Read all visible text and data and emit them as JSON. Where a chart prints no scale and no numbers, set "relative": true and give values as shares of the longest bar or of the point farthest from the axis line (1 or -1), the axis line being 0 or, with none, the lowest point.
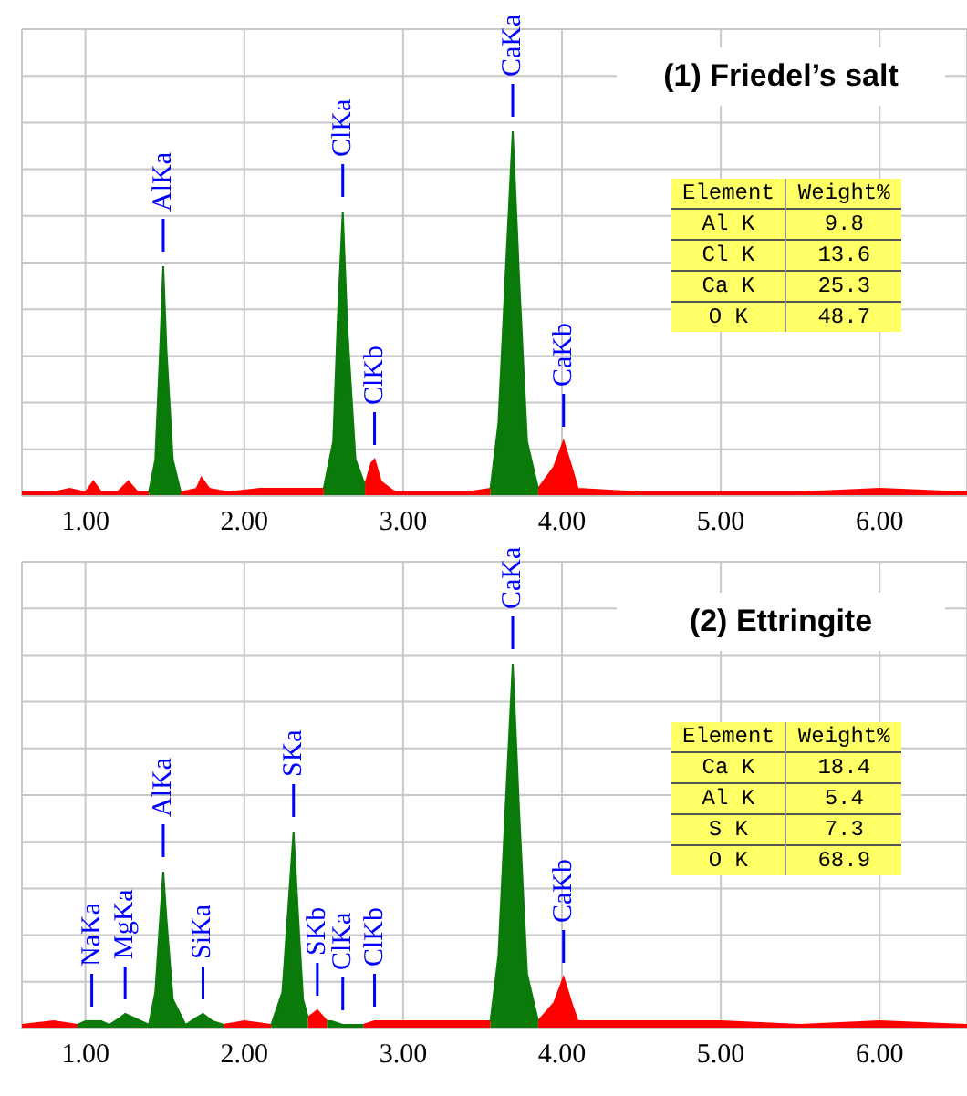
{
  "chart_data": [
    {
      "type": "area",
      "relative": true,
      "title": "(1) Friedel’s salt",
      "grid": true,
      "xlim": [
        0.6,
        6.55
      ],
      "xticks": [
        {
          "value": 1,
          "label": "1.00"
        },
        {
          "value": 2,
          "label": "2.00"
        },
        {
          "value": 3,
          "label": "3.00"
        },
        {
          "value": 4,
          "label": "4.00"
        },
        {
          "value": 5,
          "label": "5.00"
        },
        {
          "value": 6,
          "label": "6.00"
        }
      ],
      "series": [
        {
          "color": "#ff0000",
          "x": [
            0.6,
            0.8,
            0.9,
            1.0,
            1.05,
            1.1,
            1.2,
            1.27,
            1.33,
            1.4,
            1.5,
            1.6,
            1.7,
            1.73,
            1.78,
            1.9,
            2.1,
            2.3,
            2.5,
            2.6,
            2.76,
            2.8,
            2.82,
            2.86,
            2.95,
            3.2,
            3.4,
            3.55,
            3.7,
            3.85,
            3.95,
            4.01,
            4.06,
            4.1,
            4.5,
            5.0,
            5.5,
            6.0,
            6.55
          ],
          "values": [
            0.01,
            0.01,
            0.02,
            0.01,
            0.04,
            0.01,
            0.01,
            0.04,
            0.01,
            0.01,
            null,
            0.01,
            0.02,
            0.05,
            0.02,
            0.01,
            0.02,
            0.02,
            0.02,
            null,
            0.03,
            0.09,
            0.1,
            0.04,
            0.01,
            0.01,
            0.01,
            0.02,
            null,
            0.02,
            0.08,
            0.15,
            0.08,
            0.02,
            0.01,
            0.01,
            0.01,
            0.02,
            0.01
          ]
        },
        {
          "color": "#0a7a0a",
          "x": [
            1.4,
            1.44,
            1.47,
            1.49,
            1.51,
            1.55,
            1.6,
            2.0,
            2.5,
            2.56,
            2.59,
            2.62,
            2.65,
            2.7,
            2.76,
            3.2,
            3.55,
            3.6,
            3.65,
            3.69,
            3.73,
            3.78,
            3.85
          ],
          "values": [
            0.01,
            0.1,
            0.4,
            0.63,
            0.4,
            0.1,
            0.01,
            null,
            0.02,
            0.15,
            0.5,
            0.78,
            0.45,
            0.1,
            0.03,
            null,
            0.02,
            0.2,
            0.65,
            1,
            0.6,
            0.15,
            0.02
          ]
        }
      ],
      "annotations": [
        {
          "text": "AlKa",
          "x": 1.49,
          "y": 0.63
        },
        {
          "text": "ClKa",
          "x": 2.62,
          "y": 0.78
        },
        {
          "text": "ClKb",
          "x": 2.82,
          "y": 0.1
        },
        {
          "text": "CaKa",
          "x": 3.69,
          "y": 1
        },
        {
          "text": "CaKb",
          "x": 4.01,
          "y": 0.15
        },
        "Element",
        "Weight%",
        "Al K",
        "9.8",
        "Cl K",
        "13.6",
        "Ca K",
        "25.3",
        "O K",
        "48.7"
      ]
    },
    {
      "type": "area",
      "relative": true,
      "title": "(2) Ettringite",
      "grid": true,
      "xlim": [
        0.6,
        6.55
      ],
      "xticks": [
        {
          "value": 1,
          "label": "1.00"
        },
        {
          "value": 2,
          "label": "2.00"
        },
        {
          "value": 3,
          "label": "3.00"
        },
        {
          "value": 4,
          "label": "4.00"
        },
        {
          "value": 5,
          "label": "5.00"
        },
        {
          "value": 6,
          "label": "6.00"
        }
      ],
      "series": [
        {
          "color": "#ff0000",
          "x": [
            0.6,
            0.8,
            0.95,
            1.4,
            1.87,
            2.0,
            2.17,
            2.3,
            2.4,
            2.46,
            2.52,
            2.6,
            2.75,
            2.82,
            3.0,
            3.3,
            3.55,
            3.7,
            3.85,
            3.95,
            4.01,
            4.06,
            4.1,
            4.5,
            5.0,
            5.5,
            6.0,
            6.55
          ],
          "values": [
            0.01,
            0.02,
            0.01,
            null,
            0.01,
            0.02,
            0.01,
            null,
            0.03,
            0.05,
            0.02,
            null,
            0.01,
            0.02,
            0.02,
            0.02,
            0.02,
            null,
            0.02,
            0.07,
            0.14,
            0.07,
            0.02,
            0.02,
            0.02,
            0.01,
            0.02,
            0.01
          ]
        },
        {
          "color": "#0a7a0a",
          "x": [
            0.95,
            1.0,
            1.05,
            1.1,
            1.15,
            1.22,
            1.25,
            1.3,
            1.4,
            1.44,
            1.47,
            1.49,
            1.51,
            1.55,
            1.63,
            1.7,
            1.74,
            1.8,
            1.87,
            2.0,
            2.17,
            2.24,
            2.28,
            2.31,
            2.34,
            2.37,
            2.4,
            2.46,
            2.52,
            2.55,
            2.62,
            2.7,
            2.75,
            3.0,
            3.55,
            3.6,
            3.65,
            3.69,
            3.73,
            3.78,
            3.85
          ],
          "values": [
            0.01,
            0.02,
            0.02,
            0.02,
            0.01,
            0.03,
            0.04,
            0.03,
            0.01,
            0.1,
            0.3,
            0.43,
            0.3,
            0.08,
            0.01,
            0.03,
            0.04,
            0.02,
            0.01,
            null,
            0.01,
            0.1,
            0.35,
            0.54,
            0.3,
            0.08,
            0.03,
            null,
            0.02,
            0.02,
            0.01,
            0.01,
            0.01,
            null,
            0.02,
            0.2,
            0.65,
            1,
            0.6,
            0.15,
            0.02
          ]
        }
      ],
      "annotations": [
        {
          "text": "NaKa",
          "x": 1.04,
          "y": 0.02
        },
        {
          "text": "MgKa",
          "x": 1.25,
          "y": 0.04
        },
        {
          "text": "AlKa",
          "x": 1.49,
          "y": 0.43
        },
        {
          "text": "SiKa",
          "x": 1.74,
          "y": 0.04
        },
        {
          "text": "SKa",
          "x": 2.31,
          "y": 0.54
        },
        {
          "text": "SKb",
          "x": 2.46,
          "y": 0.05
        },
        {
          "text": "ClKa",
          "x": 2.62,
          "y": 0.01
        },
        {
          "text": "ClKb",
          "x": 2.82,
          "y": 0.02
        },
        {
          "text": "CaKa",
          "x": 3.69,
          "y": 1
        },
        {
          "text": "CaKb",
          "x": 4.01,
          "y": 0.14
        },
        "Element",
        "Weight%",
        "Ca K",
        "18.4",
        "Al K",
        "5.4",
        "S K",
        "7.3",
        "O K",
        "68.9"
      ]
    }
  ]
}
